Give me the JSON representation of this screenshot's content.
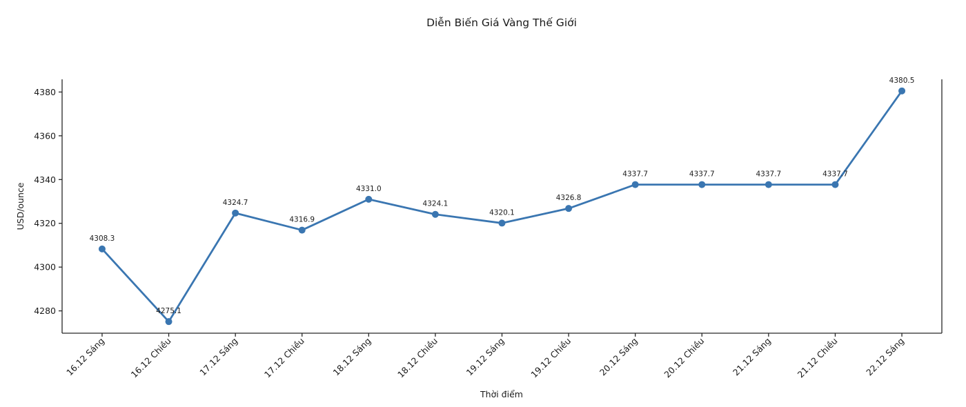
{
  "chart_data": {
    "type": "line",
    "title": "Diễn Biến Giá Vàng Thế Giới",
    "xlabel": "Thời điểm",
    "ylabel": "USD/ounce",
    "categories": [
      "16.12 Sáng",
      "16.12 Chiều",
      "17.12 Sáng",
      "17.12 Chiều",
      "18.12 Sáng",
      "18.12 Chiều",
      "19.12 Sáng",
      "19.12 Chiều",
      "20.12 Sáng",
      "20.12 Chiều",
      "21.12 Sáng",
      "21.12 Chiều",
      "22.12 Sáng"
    ],
    "values": [
      4308.3,
      4275.1,
      4324.7,
      4316.9,
      4331.0,
      4324.1,
      4320.1,
      4326.8,
      4337.7,
      4337.7,
      4337.7,
      4337.7,
      4380.5
    ],
    "point_labels": [
      "4308.3",
      "4275.1",
      "4324.7",
      "4316.9",
      "4331.0",
      "4324.1",
      "4320.1",
      "4326.8",
      "4337.7",
      "4337.7",
      "4337.7",
      "4337.7",
      "4380.5"
    ],
    "yticks": [
      4280,
      4300,
      4320,
      4340,
      4360,
      4380
    ],
    "ylim": [
      4269.8,
      4385.8
    ],
    "grid": false,
    "legend_position": "none",
    "line_color": "#3a76b1",
    "marker_color": "#3a76b1",
    "text_color": "#1a1a1a",
    "spine_color": "#262626"
  }
}
